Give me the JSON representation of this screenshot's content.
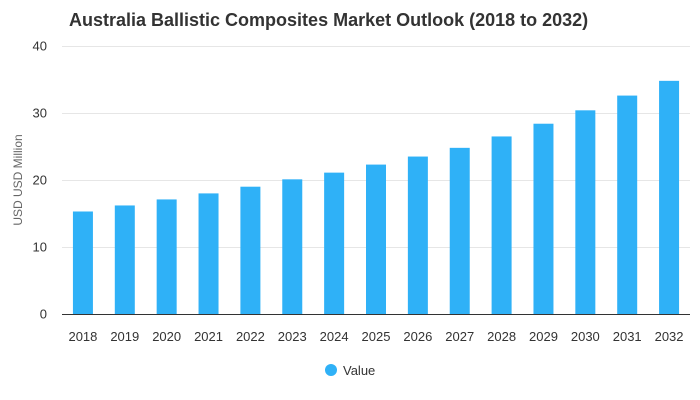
{
  "chart_data": {
    "type": "bar",
    "title": "Australia Ballistic Composites Market Outlook (2018 to 2032)",
    "xlabel": "",
    "ylabel": "USD USD Million",
    "ylim": [
      0,
      40
    ],
    "yticks": [
      0,
      10,
      20,
      30,
      40
    ],
    "grid": true,
    "legend_position": "bottom",
    "categories": [
      "2018",
      "2019",
      "2020",
      "2021",
      "2022",
      "2023",
      "2024",
      "2025",
      "2026",
      "2027",
      "2028",
      "2029",
      "2030",
      "2031",
      "2032"
    ],
    "series": [
      {
        "name": "Value",
        "color": "#2fb1f7",
        "values": [
          15.3,
          16.2,
          17.1,
          18.0,
          19.0,
          20.1,
          21.1,
          22.3,
          23.5,
          24.8,
          26.5,
          28.4,
          30.4,
          32.6,
          34.8
        ]
      }
    ]
  }
}
